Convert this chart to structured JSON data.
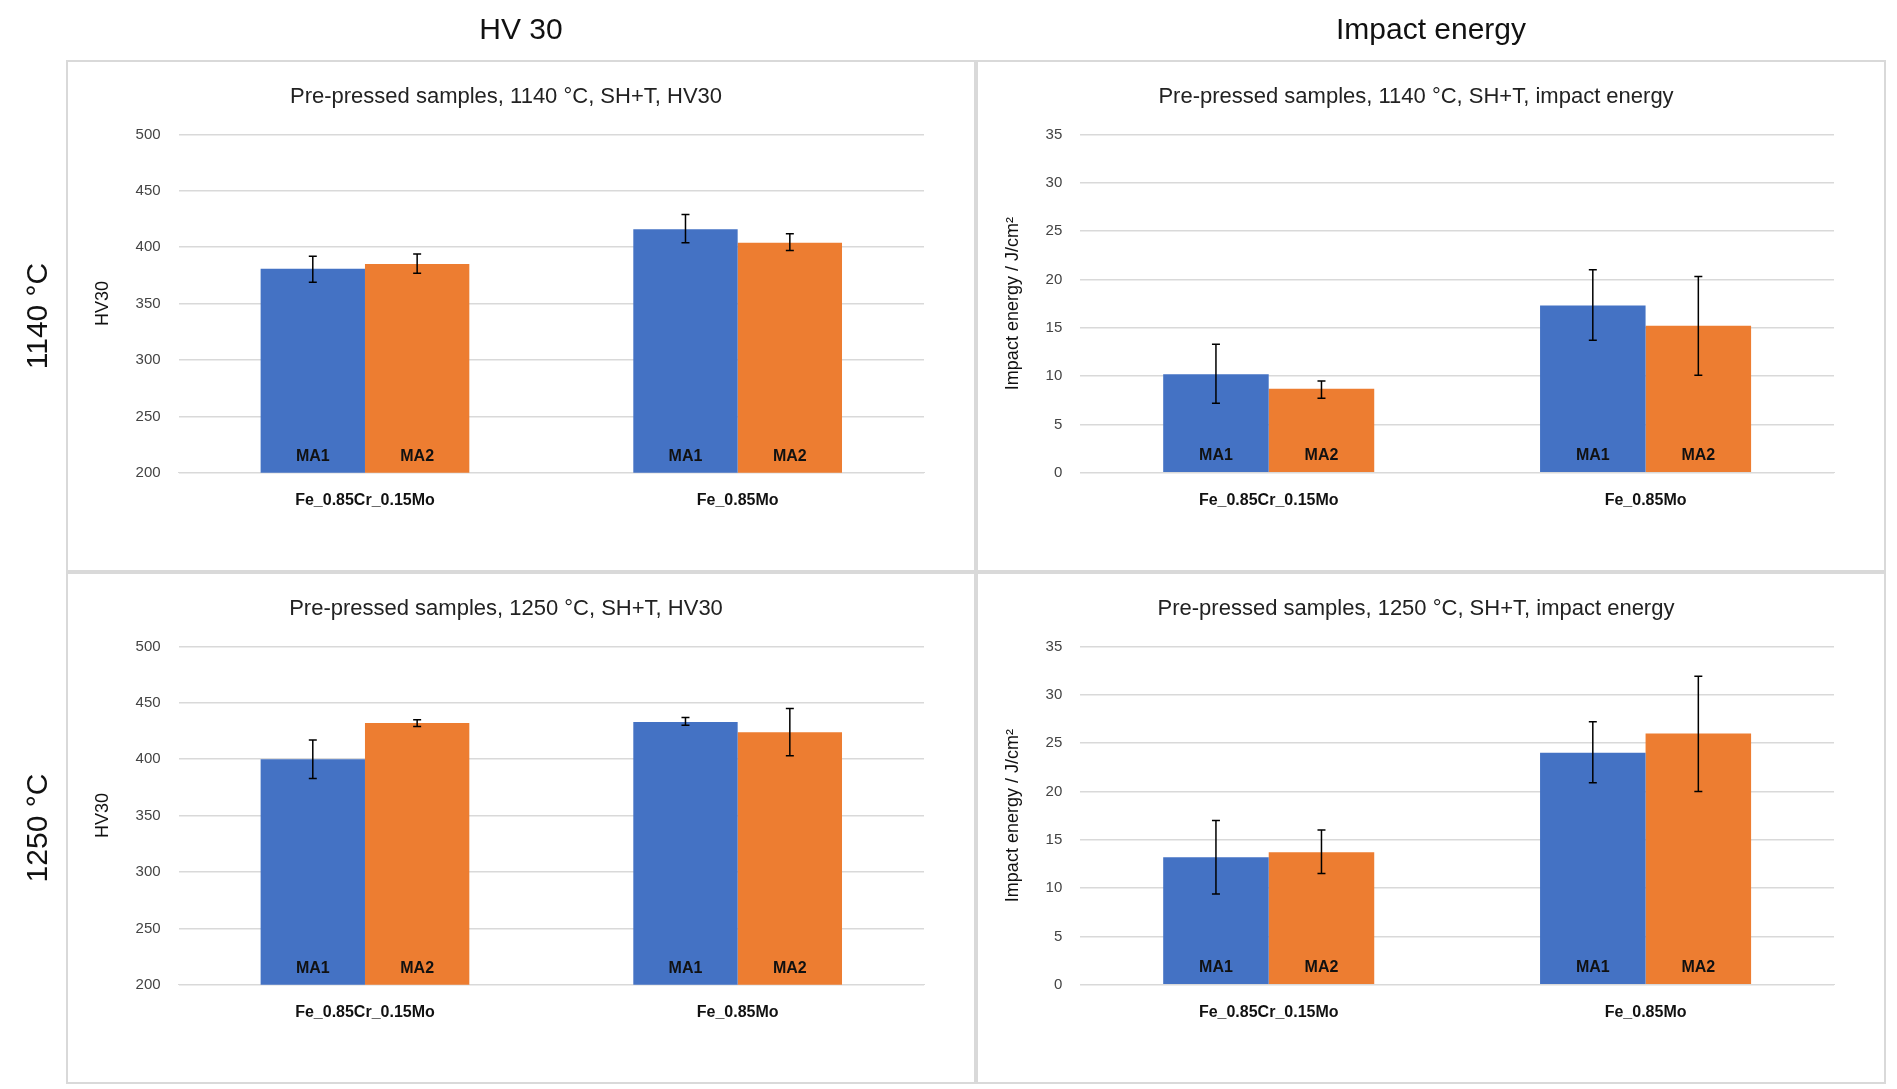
{
  "chart_data": [
    {
      "type": "bar",
      "title": "Pre-pressed samples, 1140 °C, SH+T, HV30",
      "ylabel": "HV30",
      "annotations": [
        "HV 30",
        "1140 °C"
      ],
      "categories": [
        "Fe_0.85Cr_0.15Mo",
        "Fe_0.85Mo"
      ],
      "ylim": [
        200,
        500
      ],
      "yticks": [
        200,
        250,
        300,
        350,
        400,
        450,
        500
      ],
      "grid": "y",
      "legend": false,
      "series": [
        {
          "name": "MA1",
          "color": "#4472c4",
          "values": [
            381,
            416
          ],
          "errors": [
            [
              369,
              392
            ],
            [
              404,
              429
            ]
          ]
        },
        {
          "name": "MA2",
          "color": "#ed7d31",
          "values": [
            385,
            404
          ],
          "errors": [
            [
              377,
              394
            ],
            [
              397,
              412
            ]
          ]
        }
      ]
    },
    {
      "type": "bar",
      "title": "Pre-pressed samples, 1140 °C, SH+T, impact energy",
      "ylabel": "Impact energy / J/cm²",
      "annotations": [
        "Impact energy"
      ],
      "categories": [
        "Fe_0.85Cr_0.15Mo",
        "Fe_0.85Mo"
      ],
      "ylim": [
        0,
        35
      ],
      "yticks": [
        0,
        5,
        10,
        15,
        20,
        25,
        30,
        35
      ],
      "grid": "y",
      "legend": false,
      "series": [
        {
          "name": "MA1",
          "color": "#4472c4",
          "values": [
            10.2,
            17.3
          ],
          "errors": [
            [
              7.2,
              13.3
            ],
            [
              13.7,
              21.0
            ]
          ]
        },
        {
          "name": "MA2",
          "color": "#ed7d31",
          "values": [
            8.7,
            15.2
          ],
          "errors": [
            [
              7.7,
              9.5
            ],
            [
              10.1,
              20.3
            ]
          ]
        }
      ]
    },
    {
      "type": "bar",
      "title": "Pre-pressed samples, 1250 °C, SH+T, HV30",
      "ylabel": "HV30",
      "annotations": [
        "1250 °C"
      ],
      "categories": [
        "Fe_0.85Cr_0.15Mo",
        "Fe_0.85Mo"
      ],
      "ylim": [
        200,
        500
      ],
      "yticks": [
        200,
        250,
        300,
        350,
        400,
        450,
        500
      ],
      "grid": "y",
      "legend": false,
      "series": [
        {
          "name": "MA1",
          "color": "#4472c4",
          "values": [
            400,
            433
          ],
          "errors": [
            [
              383,
              417
            ],
            [
              430,
              437
            ]
          ]
        },
        {
          "name": "MA2",
          "color": "#ed7d31",
          "values": [
            432,
            424
          ],
          "errors": [
            [
              429,
              435
            ],
            [
              403,
              445
            ]
          ]
        }
      ]
    },
    {
      "type": "bar",
      "title": "Pre-pressed samples, 1250 °C, SH+T, impact energy",
      "ylabel": "Impact energy / J/cm²",
      "categories": [
        "Fe_0.85Cr_0.15Mo",
        "Fe_0.85Mo"
      ],
      "ylim": [
        0,
        35
      ],
      "yticks": [
        0,
        5,
        10,
        15,
        20,
        25,
        30,
        35
      ],
      "grid": "y",
      "legend": false,
      "series": [
        {
          "name": "MA1",
          "color": "#4472c4",
          "values": [
            13.2,
            24.0
          ],
          "errors": [
            [
              9.4,
              17.0
            ],
            [
              20.9,
              27.2
            ]
          ]
        },
        {
          "name": "MA2",
          "color": "#ed7d31",
          "values": [
            13.7,
            26.0
          ],
          "errors": [
            [
              11.5,
              16.0
            ],
            [
              20.0,
              31.9
            ]
          ]
        }
      ]
    }
  ]
}
